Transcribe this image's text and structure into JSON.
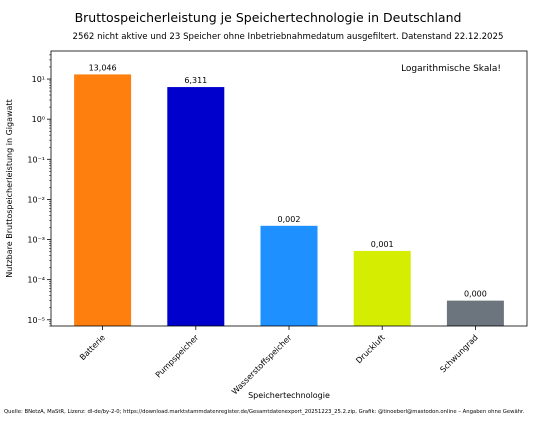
{
  "chart_data": {
    "type": "bar",
    "title": "Bruttospeicherleistung je Speichertechnologie in Deutschland",
    "subtitle": "2562 nicht aktive und 23 Speicher ohne Inbetriebnahmedatum ausgefiltert. Datenstand 22.12.2025",
    "xlabel": "Speichertechnologie",
    "ylabel": "Nutzbare Bruttospeicherleistung in Gigawatt",
    "yscale": "log",
    "ylim": [
      7e-06,
      50
    ],
    "yticks": [
      {
        "value": 10,
        "label": "10¹"
      },
      {
        "value": 1,
        "label": "10⁰"
      },
      {
        "value": 0.1,
        "label": "10⁻¹"
      },
      {
        "value": 0.01,
        "label": "10⁻²"
      },
      {
        "value": 0.001,
        "label": "10⁻³"
      },
      {
        "value": 0.0001,
        "label": "10⁻⁴"
      },
      {
        "value": 1e-05,
        "label": "10⁻⁵"
      }
    ],
    "annotation": "Logarithmische Skala!",
    "categories": [
      "Batterie",
      "Pumpspeicher",
      "Wasserstoffspeicher",
      "Druckluft",
      "Schwungrad"
    ],
    "values": [
      13.046,
      6.311,
      0.0022,
      0.00052,
      3e-05
    ],
    "data_labels": [
      "13,046",
      "6,311",
      "0,002",
      "0,001",
      "0,000"
    ],
    "colors": [
      "#ff7f0e",
      "#0000cd",
      "#1e90ff",
      "#d4ed00",
      "#6c757d"
    ],
    "grid": false
  },
  "source": "Quelle: BNetzA, MaStR, Lizenz: dl-de/by-2-0; https://download.marktstammdatenregister.de/Gesamtdatenexport_20251223_25.2.zip, Grafik: @tinoeberl@mastodon.online – Angaben ohne Gewähr."
}
